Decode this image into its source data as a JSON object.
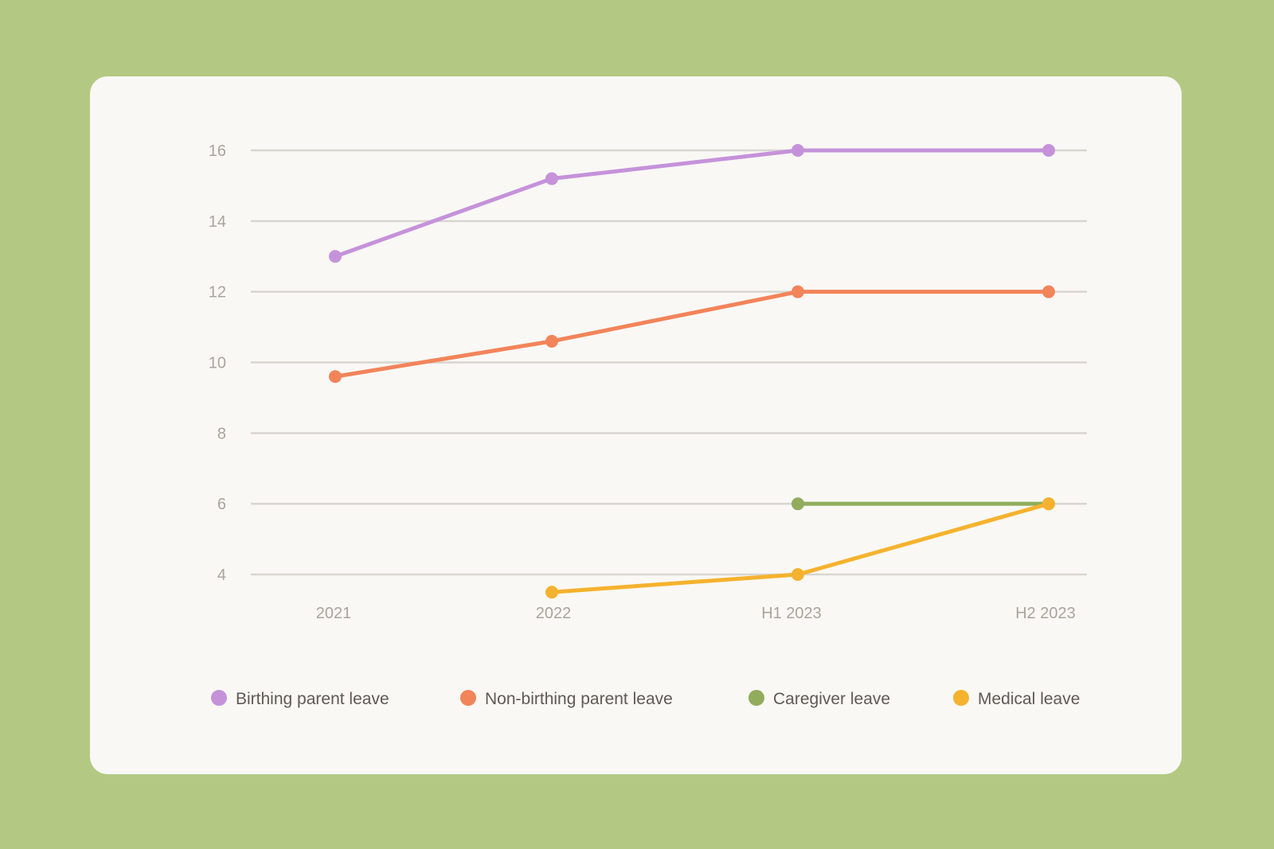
{
  "chart_data": {
    "type": "line",
    "title": "",
    "xlabel": "",
    "ylabel": "",
    "categories": [
      "2021",
      "2022",
      "H1 2023",
      "H2 2023"
    ],
    "yticks": [
      "4",
      "6",
      "8",
      "10",
      "12",
      "14",
      "16"
    ],
    "ylim": [
      4,
      16
    ],
    "grid": true,
    "legend_position": "bottom",
    "series": [
      {
        "name": "Birthing parent leave",
        "color": "#c592da",
        "values": [
          13,
          15.2,
          16,
          16
        ]
      },
      {
        "name": "Non-birthing parent leave",
        "color": "#f2845a",
        "values": [
          9.6,
          10.6,
          12,
          12
        ]
      },
      {
        "name": "Caregiver leave",
        "color": "#91ac5c",
        "values": [
          null,
          null,
          6,
          6
        ]
      },
      {
        "name": "Medical leave",
        "color": "#f5b22e",
        "values": [
          null,
          3.5,
          4,
          6
        ]
      }
    ]
  }
}
